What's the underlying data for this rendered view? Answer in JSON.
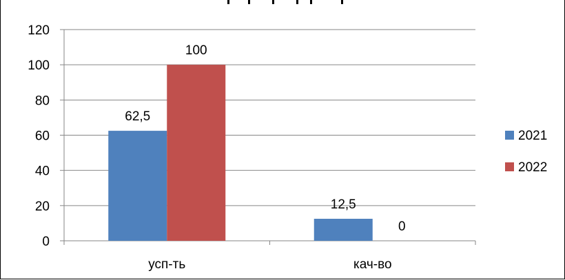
{
  "chart_data": {
    "type": "bar",
    "categories": [
      "усп-ть",
      "кач-во"
    ],
    "series": [
      {
        "name": "2021",
        "values": [
          62.5,
          12.5
        ],
        "labels": [
          "62,5",
          "12,5"
        ],
        "color": "#4f81bd"
      },
      {
        "name": "2022",
        "values": [
          100,
          0
        ],
        "labels": [
          "100",
          "0"
        ],
        "color": "#c0504d"
      }
    ],
    "yticks": [
      "0",
      "20",
      "40",
      "60",
      "80",
      "100",
      "120"
    ],
    "ylim": [
      0,
      120
    ],
    "grid": true,
    "legend": "right",
    "title": "",
    "xlabel": "",
    "ylabel": ""
  }
}
